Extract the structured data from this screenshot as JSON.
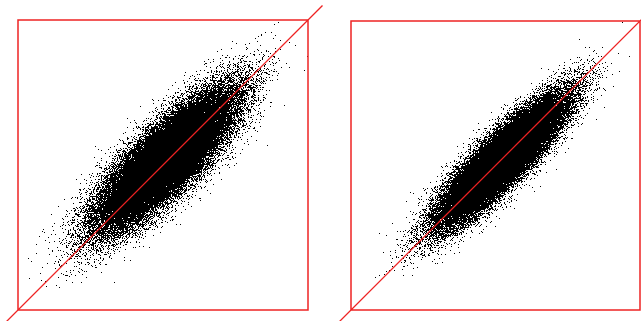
{
  "colors": {
    "background": "#ffffff",
    "frame": "#ee2222",
    "diagonal": "#ee2222",
    "points": "#000000"
  },
  "chart_data": [
    {
      "type": "scatter",
      "title": "",
      "xlabel": "",
      "ylabel": "",
      "xlim": [
        0,
        1
      ],
      "ylim": [
        0,
        1
      ],
      "grid": false,
      "legend": "none",
      "reference_line": {
        "from": [
          0,
          0
        ],
        "to": [
          1,
          1
        ]
      },
      "point_cloud": {
        "count": 60000,
        "center": [
          0.51,
          0.52
        ],
        "sd_x": 0.115,
        "sd_y": 0.115,
        "correlation": 0.82
      }
    },
    {
      "type": "scatter",
      "title": "",
      "xlabel": "",
      "ylabel": "",
      "xlim": [
        0,
        1
      ],
      "ylim": [
        0,
        1
      ],
      "grid": false,
      "legend": "none",
      "reference_line": {
        "from": [
          0,
          0
        ],
        "to": [
          1,
          1
        ]
      },
      "point_cloud": {
        "count": 60000,
        "center": [
          0.52,
          0.52
        ],
        "sd_x": 0.105,
        "sd_y": 0.105,
        "correlation": 0.88
      }
    }
  ]
}
